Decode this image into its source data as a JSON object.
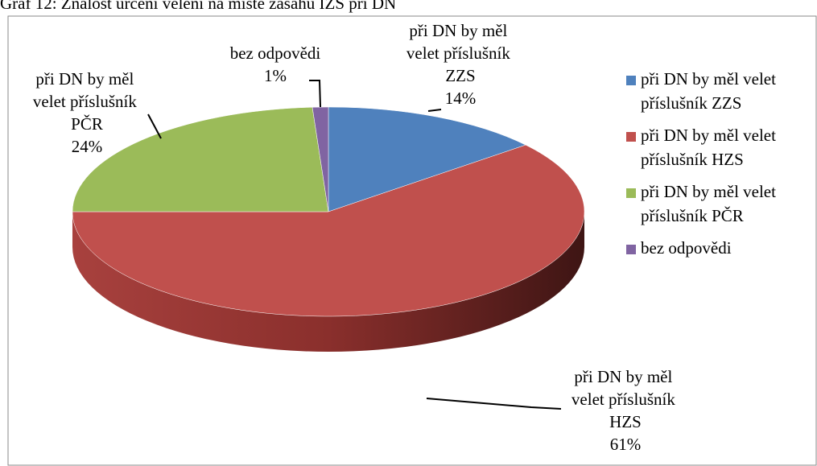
{
  "chart_data": {
    "type": "pie",
    "title": "Graf 12: Znalost určení velení na místě zásahu IZS při DN",
    "categories": [
      "při DN by měl velet příslušník ZZS",
      "při DN by měl velet příslušník HZS",
      "při DN by měl velet příslušník PČR",
      "bez odpovědi"
    ],
    "values": [
      14,
      61,
      24,
      1
    ],
    "value_labels": [
      "14%",
      "61%",
      "24%",
      "1%"
    ],
    "colors": [
      "#4f81bd",
      "#c0504d",
      "#9bbb59",
      "#8064a2"
    ],
    "legend": "right"
  }
}
